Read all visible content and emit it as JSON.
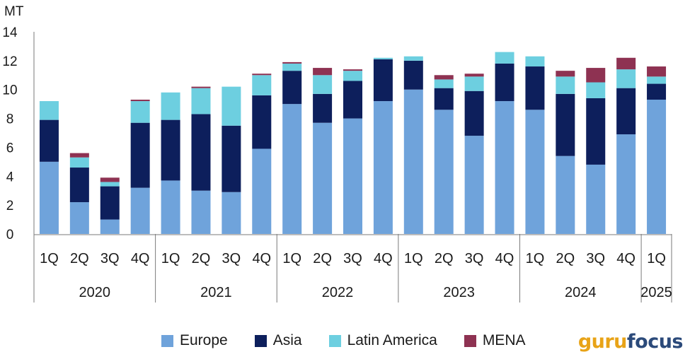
{
  "chart_data": {
    "type": "bar",
    "stacked": true,
    "ylabel": "MT",
    "ylim": [
      0,
      14
    ],
    "yticks": [
      0,
      2,
      4,
      6,
      8,
      10,
      12,
      14
    ],
    "categories": [
      "1Q",
      "2Q",
      "3Q",
      "4Q",
      "1Q",
      "2Q",
      "3Q",
      "4Q",
      "1Q",
      "2Q",
      "3Q",
      "4Q",
      "1Q",
      "2Q",
      "3Q",
      "4Q",
      "1Q",
      "2Q",
      "3Q",
      "4Q",
      "1Q"
    ],
    "years": [
      {
        "label": "2020",
        "start": 0,
        "end": 3
      },
      {
        "label": "2021",
        "start": 4,
        "end": 7
      },
      {
        "label": "2022",
        "start": 8,
        "end": 11
      },
      {
        "label": "2023",
        "start": 12,
        "end": 15
      },
      {
        "label": "2024",
        "start": 16,
        "end": 19
      },
      {
        "label": "2025",
        "start": 20,
        "end": 20
      }
    ],
    "series": [
      {
        "name": "Europe",
        "color": "#6fa3db",
        "values": [
          5.0,
          2.2,
          1.0,
          3.2,
          3.7,
          3.0,
          2.9,
          5.9,
          9.0,
          7.7,
          8.0,
          9.2,
          10.0,
          8.6,
          6.8,
          9.2,
          8.6,
          5.4,
          4.8,
          6.9,
          9.3
        ]
      },
      {
        "name": "Asia",
        "color": "#0d1f5c",
        "values": [
          2.9,
          2.4,
          2.3,
          4.5,
          4.2,
          5.3,
          4.6,
          3.7,
          2.3,
          2.0,
          2.6,
          2.9,
          2.0,
          1.5,
          3.1,
          2.6,
          3.0,
          4.3,
          4.6,
          3.2,
          1.1
        ]
      },
      {
        "name": "Latin America",
        "color": "#6dcfe0",
        "values": [
          1.3,
          0.7,
          0.3,
          1.5,
          1.9,
          1.8,
          2.7,
          1.4,
          0.5,
          1.3,
          0.7,
          0.1,
          0.3,
          0.6,
          1.0,
          0.8,
          0.7,
          1.2,
          1.1,
          1.3,
          0.5
        ]
      },
      {
        "name": "MENA",
        "color": "#8e3252",
        "values": [
          0,
          0.3,
          0.3,
          0.1,
          0,
          0.1,
          0,
          0.1,
          0.1,
          0.5,
          0.1,
          0,
          0,
          0.3,
          0.2,
          0,
          0,
          0.4,
          1.0,
          0.8,
          0.7
        ]
      }
    ]
  },
  "legend": {
    "items": [
      {
        "name": "Europe",
        "color": "#6fa3db"
      },
      {
        "name": "Asia",
        "color": "#0d1f5c"
      },
      {
        "name": "Latin America",
        "color": "#6dcfe0"
      },
      {
        "name": "MENA",
        "color": "#8e3252"
      }
    ]
  },
  "logo": {
    "part1": "guru",
    "part2": "focus"
  }
}
